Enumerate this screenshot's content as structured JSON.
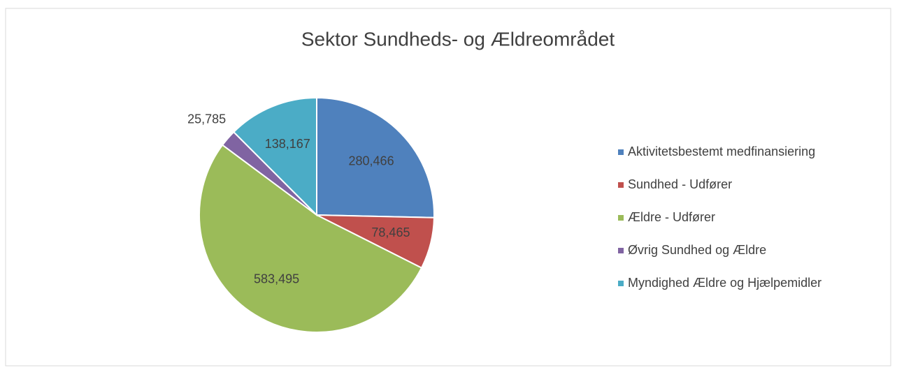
{
  "chart_data": {
    "type": "pie",
    "title": "Sektor Sundheds- og Ældreområdet",
    "categories": [
      "Aktivitetsbestemt medfinansiering",
      "Sundhed - Udfører",
      "Ældre - Udfører",
      "Øvrig Sundhed og Ældre",
      "Myndighed Ældre og Hjælpemidler"
    ],
    "values": [
      280466,
      78465,
      583495,
      25785,
      138167
    ],
    "value_labels": [
      "280,466",
      "78,465",
      "583,495",
      "25,785",
      "138,167"
    ],
    "colors": [
      "#4f81bd",
      "#c0504d",
      "#9bbb59",
      "#8064a2",
      "#4bacc6"
    ],
    "legend": "right"
  }
}
